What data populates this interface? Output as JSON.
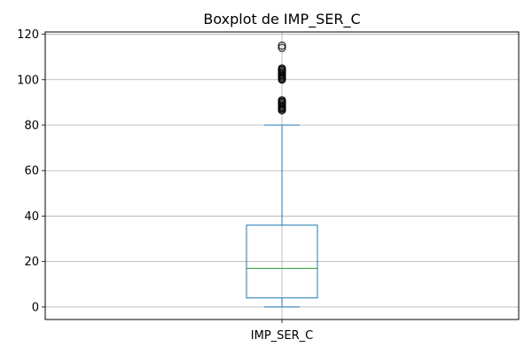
{
  "chart_data": {
    "type": "box",
    "title": "Boxplot de IMP_SER_C",
    "xlabel": "",
    "ylabel": "",
    "categories": [
      "IMP_SER_C"
    ],
    "ylim": [
      -5.5,
      121
    ],
    "y_ticks": [
      0,
      20,
      40,
      60,
      80,
      100,
      120
    ],
    "grid": true,
    "box": {
      "whisker_low": 0,
      "q1": 4,
      "median": 17,
      "q3": 36,
      "whisker_high": 80,
      "outliers": [
        86.5,
        87,
        87.5,
        88,
        88.5,
        89,
        89.5,
        90,
        90.5,
        91,
        100,
        100.5,
        101,
        101.5,
        102,
        102.5,
        103,
        103.5,
        104,
        104.5,
        105,
        114,
        115
      ]
    },
    "colors": {
      "box": "#1f77b4",
      "median": "#2ca02c",
      "outlier": "#000000",
      "grid": "#b0b0b0"
    }
  }
}
